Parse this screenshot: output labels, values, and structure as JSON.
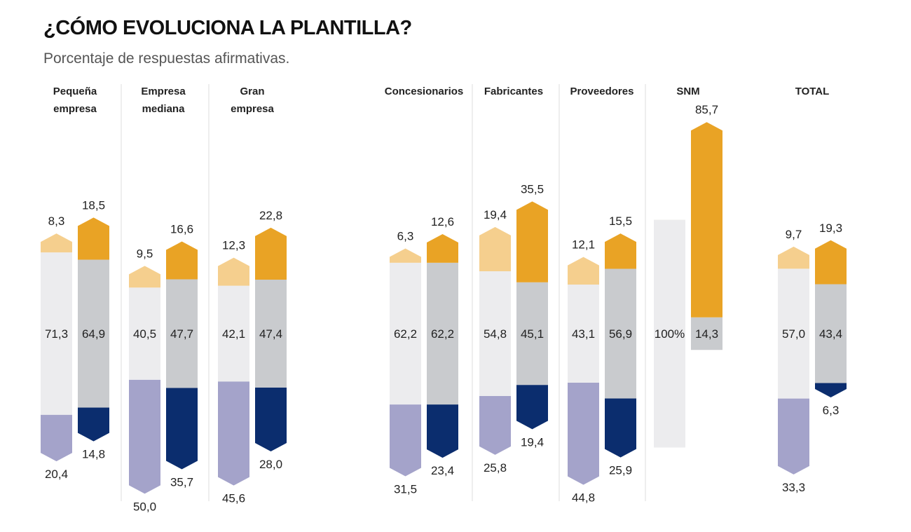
{
  "chart_data": {
    "type": "bar",
    "title": "¿CÓMO EVOLUCIONA LA PLANTILLA?",
    "subtitle": "Porcentaje de respuestas afirmativas.",
    "stacked": true,
    "grid": false,
    "legend": "none",
    "colors": {
      "up_light": "#f5cf8e",
      "up_dark": "#e9a325",
      "same_light": "#ececee",
      "same_dark": "#c9cbce",
      "down_light": "#a4a3ca",
      "down_dark": "#0b2d6e"
    },
    "groups": [
      {
        "name": [
          "Pequeña",
          "empresa"
        ],
        "bars": [
          {
            "up": "8,3",
            "same": "71,3",
            "down": "20,4"
          },
          {
            "up": "18,5",
            "same": "64,9",
            "down": "14,8"
          }
        ]
      },
      {
        "name": [
          "Empresa",
          "mediana"
        ],
        "bars": [
          {
            "up": "9,5",
            "same": "40,5",
            "down": "50,0"
          },
          {
            "up": "16,6",
            "same": "47,7",
            "down": "35,7"
          }
        ]
      },
      {
        "name": [
          "Gran",
          "empresa"
        ],
        "bars": [
          {
            "up": "12,3",
            "same": "42,1",
            "down": "45,6"
          },
          {
            "up": "22,8",
            "same": "47,4",
            "down": "28,0"
          }
        ]
      },
      {
        "name": [
          "Concesionarios"
        ],
        "bars": [
          {
            "up": "6,3",
            "same": "62,2",
            "down": "31,5"
          },
          {
            "up": "12,6",
            "same": "62,2",
            "down": "23,4"
          }
        ]
      },
      {
        "name": [
          "Fabricantes"
        ],
        "bars": [
          {
            "up": "19,4",
            "same": "54,8",
            "down": "25,8"
          },
          {
            "up": "35,5",
            "same": "45,1",
            "down": "19,4"
          }
        ]
      },
      {
        "name": [
          "Proveedores"
        ],
        "bars": [
          {
            "up": "12,1",
            "same": "43,1",
            "down": "44,8"
          },
          {
            "up": "15,5",
            "same": "56,9",
            "down": "25,9"
          }
        ]
      },
      {
        "name": [
          "SNM"
        ],
        "bars": [
          {
            "up": null,
            "same": "100%",
            "down": null
          },
          {
            "up": "85,7",
            "same": "14,3",
            "down": null
          }
        ]
      },
      {
        "name": [
          "TOTAL"
        ],
        "bars": [
          {
            "up": "9,7",
            "same": "57,0",
            "down": "33,3"
          },
          {
            "up": "19,3",
            "same": "43,4",
            "down": "6,3"
          }
        ]
      }
    ]
  }
}
